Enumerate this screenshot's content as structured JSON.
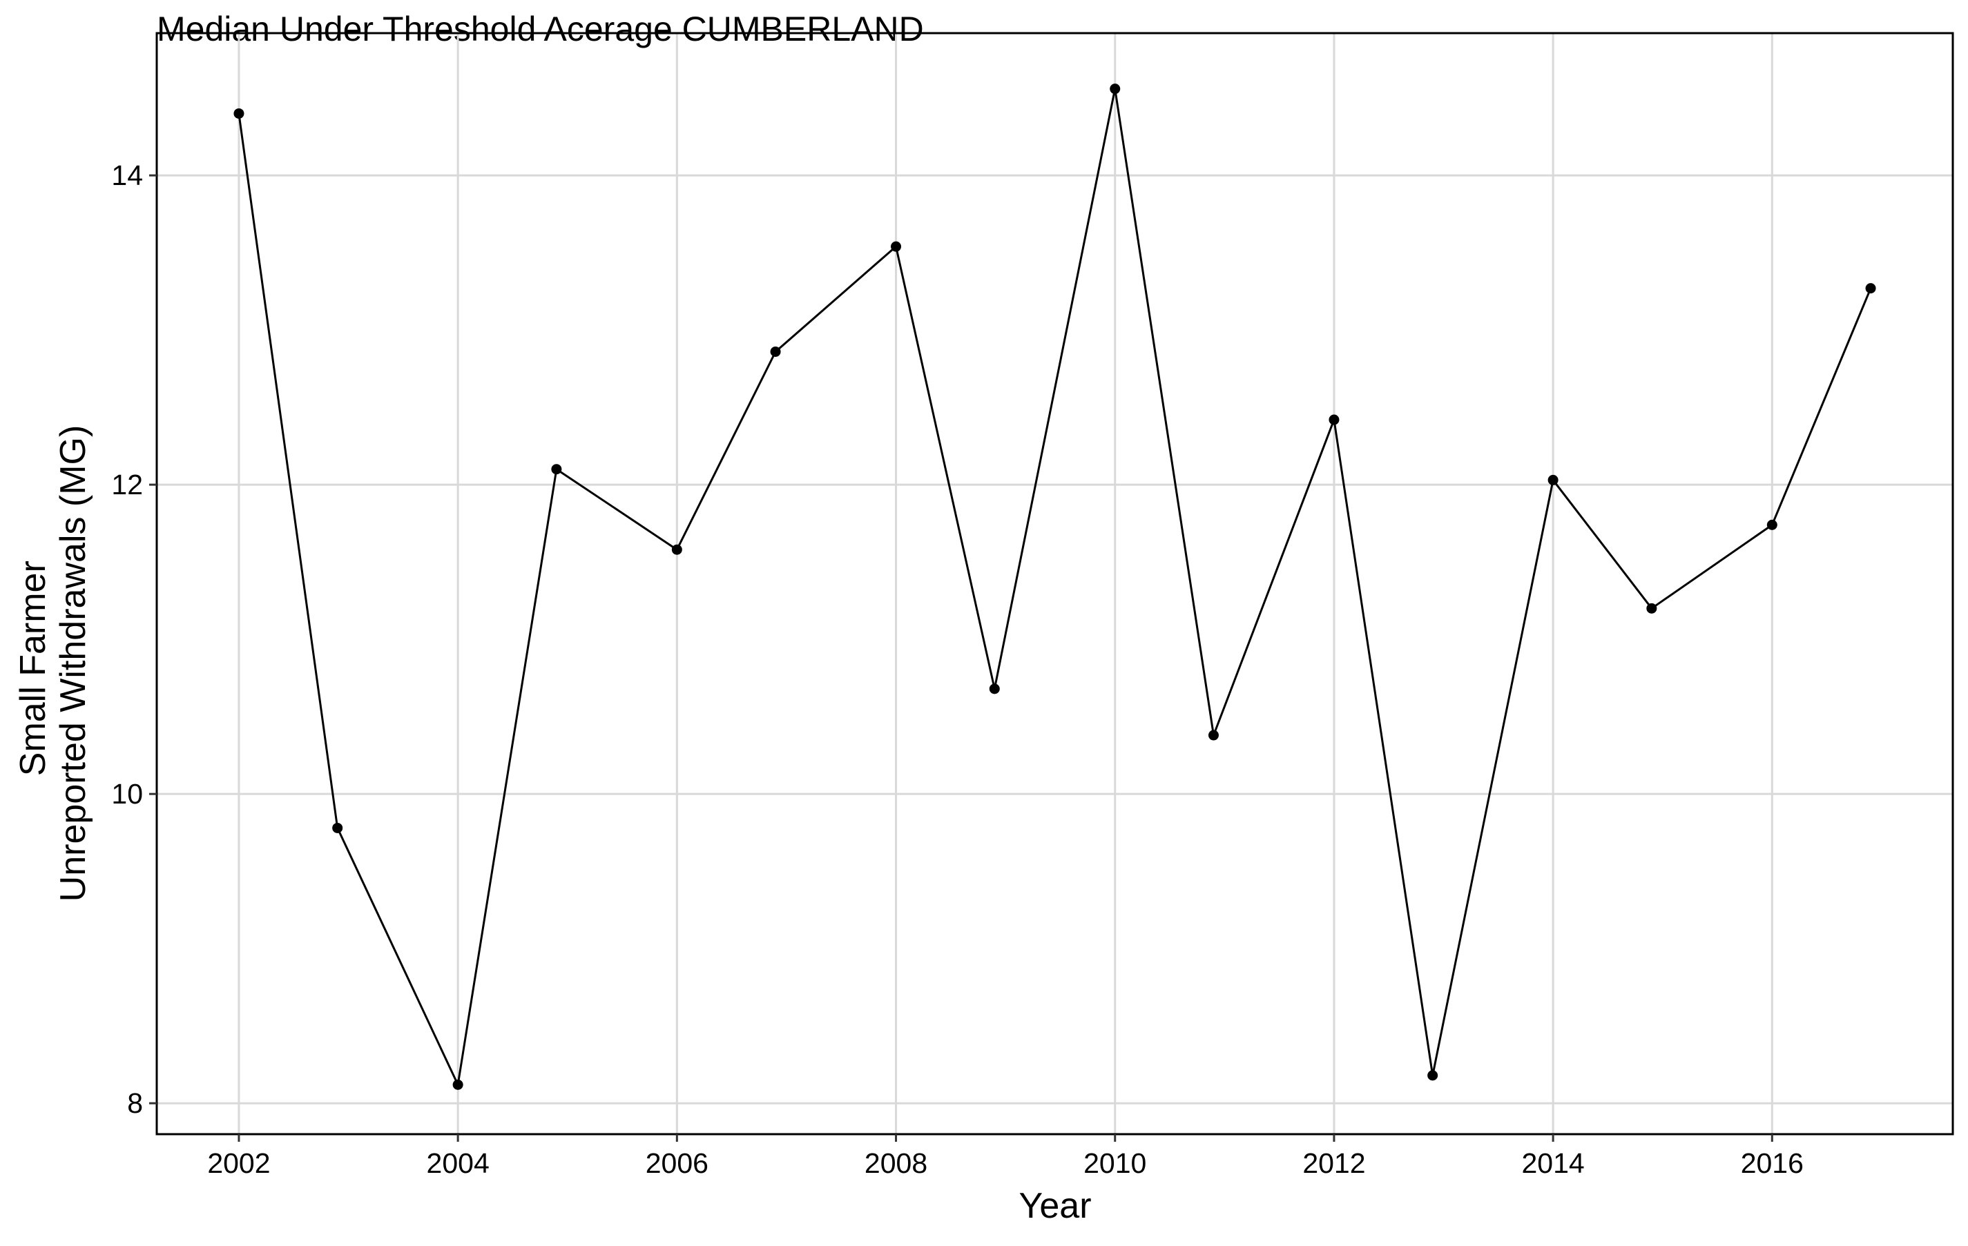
{
  "chart_data": {
    "type": "line",
    "title": "Median Under Threshold Acerage CUMBERLAND",
    "xlabel": "Year",
    "ylabel_lines": [
      "Small Farmer",
      "Unreported Withdrawals (MG)"
    ],
    "x": [
      2002.0,
      2002.9,
      2004.0,
      2004.9,
      2006.0,
      2006.9,
      2008.0,
      2008.9,
      2010.0,
      2010.9,
      2012.0,
      2012.9,
      2014.0,
      2014.9,
      2016.0,
      2016.9
    ],
    "y": [
      14.4,
      9.78,
      8.12,
      12.1,
      11.58,
      12.86,
      13.54,
      10.68,
      14.56,
      10.38,
      12.42,
      8.18,
      12.03,
      11.2,
      11.74,
      13.27
    ],
    "x_ticks": [
      2002,
      2004,
      2006,
      2008,
      2010,
      2012,
      2014,
      2016
    ],
    "x_tick_labels": [
      "2002",
      "2004",
      "2006",
      "2008",
      "2010",
      "2012",
      "2014",
      "2016"
    ],
    "y_ticks": [
      8,
      10,
      12,
      14
    ],
    "y_tick_labels": [
      "8",
      "10",
      "12",
      "14"
    ],
    "xlim": [
      2001.25,
      2017.65
    ],
    "ylim": [
      7.8,
      14.92
    ],
    "grid": true,
    "line_color": "#000000",
    "point_color": "#000000",
    "grid_color": "#d9d9d9"
  }
}
